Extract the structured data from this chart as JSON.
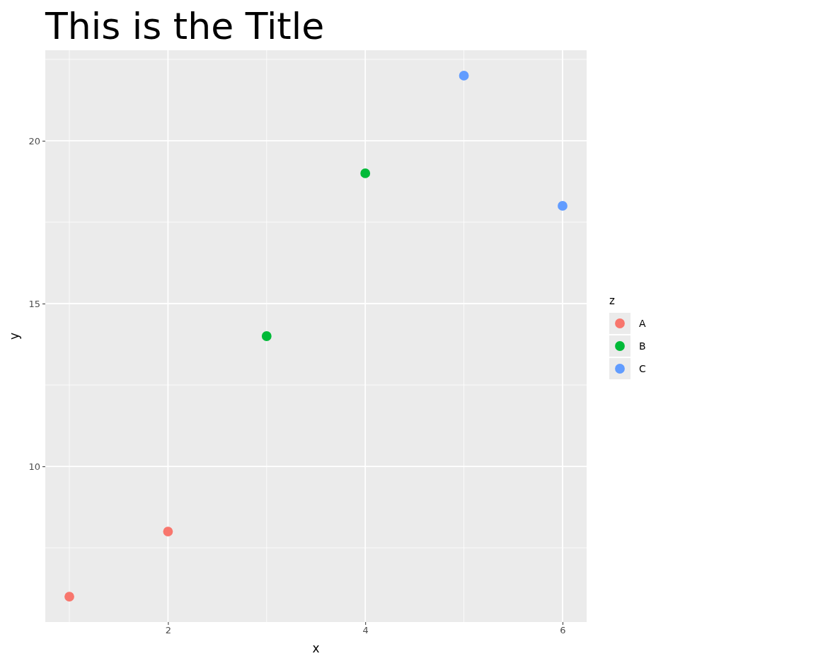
{
  "chart_data": {
    "type": "scatter",
    "title": "This is the Title",
    "xlabel": "x",
    "ylabel": "y",
    "legend_title": "z",
    "xlim": [
      0.756,
      6.244
    ],
    "xticks": [
      2,
      4,
      6
    ],
    "ylim": [
      5.22,
      22.78
    ],
    "yticks": [
      10,
      15,
      20
    ],
    "grid": true,
    "legend": "right",
    "marker": "circle",
    "series": [
      {
        "name": "A",
        "color": "#f8766d",
        "x": [
          1,
          2
        ],
        "values": [
          6,
          8
        ]
      },
      {
        "name": "B",
        "color": "#00ba38",
        "x": [
          3,
          4
        ],
        "values": [
          14,
          19
        ]
      },
      {
        "name": "C",
        "color": "#619cff",
        "x": [
          5,
          6
        ],
        "values": [
          22,
          18
        ]
      }
    ]
  }
}
